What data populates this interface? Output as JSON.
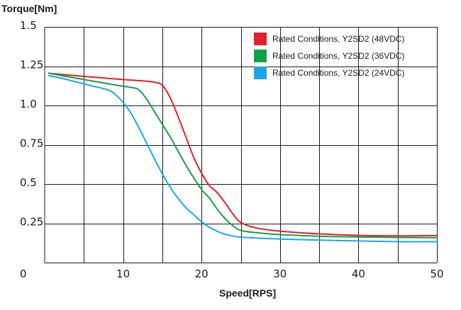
{
  "chart_data": {
    "type": "line",
    "title": "",
    "ylabel": "Torque[Nm]",
    "xlabel": "Speed[RPS]",
    "xlim": [
      0,
      50
    ],
    "ylim": [
      0,
      1.5
    ],
    "xticks": [
      10,
      20,
      30,
      40,
      50
    ],
    "xtick_labels": [
      "10",
      "20",
      "30",
      "40",
      "50"
    ],
    "origin_label": "0",
    "yticks": [
      0.25,
      0.5,
      0.75,
      1.0,
      1.25,
      1.5
    ],
    "ytick_labels": [
      "0.25",
      "0.5",
      "0.75",
      "1.0",
      "1.25",
      "1.5"
    ],
    "x_grid": [
      5,
      10,
      15,
      20,
      25,
      30,
      35,
      40,
      45,
      50
    ],
    "y_grid": [
      0.25,
      0.5,
      0.75,
      1.0,
      1.25,
      1.5
    ],
    "grid": true,
    "legend_position": "top-right",
    "series": [
      {
        "name": "Rated Conditions, Y2SD2 (48VDC)",
        "color": "#e0202a",
        "points": [
          [
            0.5,
            1.205
          ],
          [
            5,
            1.185
          ],
          [
            10,
            1.165
          ],
          [
            12,
            1.158
          ],
          [
            14,
            1.148
          ],
          [
            15,
            1.128
          ],
          [
            16,
            1.05
          ],
          [
            17,
            0.93
          ],
          [
            18,
            0.8
          ],
          [
            19,
            0.67
          ],
          [
            20,
            0.57
          ],
          [
            21,
            0.49
          ],
          [
            22,
            0.445
          ],
          [
            23,
            0.38
          ],
          [
            24,
            0.31
          ],
          [
            25,
            0.255
          ],
          [
            27,
            0.22
          ],
          [
            30,
            0.2
          ],
          [
            35,
            0.183
          ],
          [
            40,
            0.173
          ],
          [
            45,
            0.17
          ],
          [
            50,
            0.172
          ]
        ]
      },
      {
        "name": "Rated Conditions, Y2SD2 (36VDC)",
        "color": "#12a04a",
        "points": [
          [
            0.5,
            1.205
          ],
          [
            5,
            1.165
          ],
          [
            9,
            1.13
          ],
          [
            11,
            1.115
          ],
          [
            12,
            1.1
          ],
          [
            13,
            1.04
          ],
          [
            14,
            0.96
          ],
          [
            15,
            0.88
          ],
          [
            16,
            0.8
          ],
          [
            17,
            0.71
          ],
          [
            18,
            0.62
          ],
          [
            19,
            0.54
          ],
          [
            20,
            0.465
          ],
          [
            21,
            0.41
          ],
          [
            22,
            0.34
          ],
          [
            23,
            0.28
          ],
          [
            24,
            0.235
          ],
          [
            25,
            0.205
          ],
          [
            27,
            0.19
          ],
          [
            30,
            0.178
          ],
          [
            35,
            0.168
          ],
          [
            40,
            0.163
          ],
          [
            45,
            0.16
          ],
          [
            50,
            0.158
          ]
        ]
      },
      {
        "name": "Rated Conditions, Y2SD2 (24VDC)",
        "color": "#1ea6e4",
        "points": [
          [
            0.5,
            1.19
          ],
          [
            2,
            1.175
          ],
          [
            4,
            1.15
          ],
          [
            6,
            1.125
          ],
          [
            8,
            1.1
          ],
          [
            9,
            1.07
          ],
          [
            10,
            1.02
          ],
          [
            11,
            0.95
          ],
          [
            12,
            0.86
          ],
          [
            13,
            0.76
          ],
          [
            14,
            0.66
          ],
          [
            15,
            0.565
          ],
          [
            16,
            0.48
          ],
          [
            17,
            0.41
          ],
          [
            18,
            0.35
          ],
          [
            19,
            0.305
          ],
          [
            20,
            0.26
          ],
          [
            21,
            0.225
          ],
          [
            22,
            0.2
          ],
          [
            23,
            0.18
          ],
          [
            25,
            0.162
          ],
          [
            30,
            0.15
          ],
          [
            35,
            0.143
          ],
          [
            40,
            0.138
          ],
          [
            45,
            0.133
          ],
          [
            50,
            0.133
          ]
        ]
      }
    ]
  }
}
